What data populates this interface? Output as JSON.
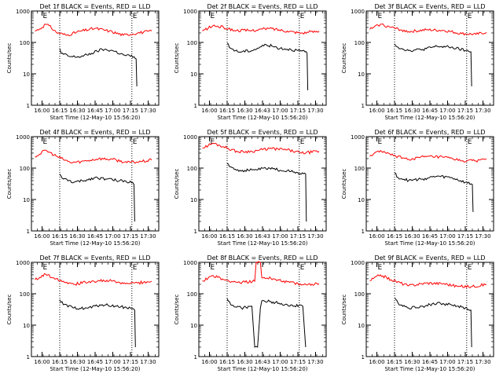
{
  "chart_data": [
    {
      "type": "line",
      "title": "Det 1f BLACK = Events, RED = LLD",
      "ylabel": "Counts/sec",
      "xlabel": "Start Time (12-May-10 15:56:20)",
      "x_ticks": [
        "16:00",
        "16:15",
        "16:30",
        "16:45",
        "17:00",
        "17:15",
        "17:30"
      ],
      "y_ticks": [
        "1",
        "10",
        "100",
        "1000"
      ],
      "ylim": [
        1,
        1000
      ],
      "yscale": "log",
      "markers": [
        "E",
        "E"
      ],
      "series": [
        {
          "color": "#ff0000",
          "values": [
            [
              15.9,
              230
            ],
            [
              16.0,
              300
            ],
            [
              16.05,
              380
            ],
            [
              16.1,
              340
            ],
            [
              16.2,
              210
            ],
            [
              16.35,
              170
            ],
            [
              16.55,
              230
            ],
            [
              16.75,
              280
            ],
            [
              16.95,
              230
            ],
            [
              17.15,
              170
            ],
            [
              17.35,
              200
            ],
            [
              17.55,
              230
            ]
          ]
        },
        {
          "color": "#000000",
          "values": [
            [
              16.25,
              65
            ],
            [
              16.27,
              45
            ],
            [
              16.4,
              35
            ],
            [
              16.55,
              35
            ],
            [
              16.7,
              45
            ],
            [
              16.85,
              60
            ],
            [
              17.0,
              55
            ],
            [
              17.15,
              40
            ],
            [
              17.3,
              35
            ],
            [
              17.33,
              30
            ],
            [
              17.34,
              4
            ]
          ]
        }
      ]
    },
    {
      "type": "line",
      "title": "Det 2f BLACK = Events, RED = LLD",
      "ylabel": "Counts/sec",
      "xlabel": "Start Time (12-May-10 15:56:20)",
      "x_ticks": [
        "16:00",
        "16:15",
        "16:30",
        "16:43",
        "17:00",
        "17:15",
        "17:30"
      ],
      "y_ticks": [
        "1",
        "10",
        "100",
        "1000"
      ],
      "ylim": [
        1,
        1000
      ],
      "yscale": "log",
      "markers": [
        "E",
        "E"
      ],
      "series": [
        {
          "color": "#ff0000",
          "values": [
            [
              15.9,
              230
            ],
            [
              16.05,
              340
            ],
            [
              16.2,
              300
            ],
            [
              16.35,
              240
            ],
            [
              16.6,
              240
            ],
            [
              16.85,
              280
            ],
            [
              17.1,
              230
            ],
            [
              17.3,
              200
            ],
            [
              17.55,
              230
            ]
          ]
        },
        {
          "color": "#000000",
          "values": [
            [
              16.25,
              95
            ],
            [
              16.28,
              70
            ],
            [
              16.4,
              50
            ],
            [
              16.6,
              55
            ],
            [
              16.8,
              85
            ],
            [
              17.0,
              65
            ],
            [
              17.15,
              60
            ],
            [
              17.35,
              50
            ],
            [
              17.38,
              45
            ],
            [
              17.39,
              3
            ]
          ]
        }
      ]
    },
    {
      "type": "line",
      "title": "Det 3f BLACK = Events, RED = LLD",
      "ylabel": "Counts/sec",
      "xlabel": "Start Time (12-May-10 15:56:20)",
      "x_ticks": [
        "16:00",
        "16:15",
        "16:30",
        "16:45",
        "17:00",
        "17:15",
        "17:30"
      ],
      "y_ticks": [
        "1",
        "10",
        "100",
        "1000"
      ],
      "ylim": [
        1,
        1000
      ],
      "yscale": "log",
      "markers": [
        "E",
        "E"
      ],
      "series": [
        {
          "color": "#ff0000",
          "values": [
            [
              15.9,
              260
            ],
            [
              16.05,
              380
            ],
            [
              16.2,
              300
            ],
            [
              16.45,
              220
            ],
            [
              16.7,
              250
            ],
            [
              16.95,
              240
            ],
            [
              17.2,
              190
            ],
            [
              17.4,
              180
            ],
            [
              17.55,
              210
            ]
          ]
        },
        {
          "color": "#000000",
          "values": [
            [
              16.25,
              90
            ],
            [
              16.3,
              70
            ],
            [
              16.45,
              55
            ],
            [
              16.65,
              60
            ],
            [
              16.85,
              75
            ],
            [
              17.05,
              70
            ],
            [
              17.25,
              55
            ],
            [
              17.33,
              50
            ],
            [
              17.34,
              4
            ]
          ]
        }
      ]
    },
    {
      "type": "line",
      "title": "Det 4f BLACK = Events, RED = LLD",
      "ylabel": "Counts/sec",
      "xlabel": "Start Time (12-May-10 15:56:20)",
      "x_ticks": [
        "16:00",
        "16:15",
        "16:30",
        "16:45",
        "17:00",
        "17:15",
        "17:30"
      ],
      "y_ticks": [
        "1",
        "10",
        "100",
        "1000"
      ],
      "ylim": [
        1,
        1000
      ],
      "yscale": "log",
      "markers": [
        "E",
        "E"
      ],
      "series": [
        {
          "color": "#ff0000",
          "values": [
            [
              15.9,
              230
            ],
            [
              16.05,
              370
            ],
            [
              16.2,
              240
            ],
            [
              16.4,
              150
            ],
            [
              16.55,
              160
            ],
            [
              16.8,
              200
            ],
            [
              17.0,
              190
            ],
            [
              17.2,
              150
            ],
            [
              17.4,
              160
            ],
            [
              17.55,
              180
            ]
          ]
        },
        {
          "color": "#000000",
          "values": [
            [
              16.25,
              65
            ],
            [
              16.3,
              45
            ],
            [
              16.45,
              35
            ],
            [
              16.6,
              40
            ],
            [
              16.75,
              50
            ],
            [
              16.9,
              45
            ],
            [
              17.1,
              40
            ],
            [
              17.28,
              35
            ],
            [
              17.3,
              30
            ],
            [
              17.31,
              2
            ]
          ]
        }
      ]
    },
    {
      "type": "line",
      "title": "Det 5f BLACK = Events, RED = LLD",
      "ylabel": "Counts/sec",
      "xlabel": "Start Time (12-May-10 15:56:20)",
      "x_ticks": [
        "16:00",
        "16:15",
        "16:30",
        "16:43",
        "17:00",
        "17:15",
        "17:30"
      ],
      "y_ticks": [
        "1",
        "10",
        "100",
        "1000"
      ],
      "ylim": [
        1,
        1000
      ],
      "yscale": "log",
      "markers": [
        "E",
        "E"
      ],
      "series": [
        {
          "color": "#ff0000",
          "values": [
            [
              15.9,
              430
            ],
            [
              16.05,
              620
            ],
            [
              16.2,
              480
            ],
            [
              16.4,
              330
            ],
            [
              16.6,
              340
            ],
            [
              16.85,
              420
            ],
            [
              17.1,
              380
            ],
            [
              17.3,
              300
            ],
            [
              17.55,
              340
            ]
          ]
        },
        {
          "color": "#000000",
          "values": [
            [
              16.25,
              140
            ],
            [
              16.3,
              110
            ],
            [
              16.45,
              80
            ],
            [
              16.65,
              90
            ],
            [
              16.85,
              100
            ],
            [
              17.0,
              85
            ],
            [
              17.2,
              75
            ],
            [
              17.36,
              65
            ],
            [
              17.37,
              2
            ]
          ]
        }
      ]
    },
    {
      "type": "line",
      "title": "Det 6f BLACK = Events, RED = LLD",
      "ylabel": "Counts/sec",
      "xlabel": "Start Time (12-May-10 15:56:20)",
      "x_ticks": [
        "16:00",
        "16:15",
        "16:30",
        "16:45",
        "17:00",
        "17:15",
        "17:30"
      ],
      "y_ticks": [
        "1",
        "10",
        "100",
        "1000"
      ],
      "ylim": [
        1,
        1000
      ],
      "yscale": "log",
      "markers": [
        "E",
        "E"
      ],
      "series": [
        {
          "color": "#ff0000",
          "values": [
            [
              15.9,
              240
            ],
            [
              16.05,
              360
            ],
            [
              16.2,
              260
            ],
            [
              16.45,
              190
            ],
            [
              16.7,
              230
            ],
            [
              16.95,
              220
            ],
            [
              17.2,
              170
            ],
            [
              17.4,
              170
            ],
            [
              17.55,
              200
            ]
          ]
        },
        {
          "color": "#000000",
          "values": [
            [
              16.25,
              70
            ],
            [
              16.3,
              50
            ],
            [
              16.45,
              40
            ],
            [
              16.65,
              45
            ],
            [
              16.85,
              55
            ],
            [
              17.05,
              50
            ],
            [
              17.25,
              35
            ],
            [
              17.35,
              30
            ],
            [
              17.36,
              4
            ]
          ]
        }
      ]
    },
    {
      "type": "line",
      "title": "Det 7f BLACK = Events, RED = LLD",
      "ylabel": "Counts/sec",
      "xlabel": "Start Time (12-May-10 15:56:20)",
      "x_ticks": [
        "16:00",
        "16:15",
        "16:30",
        "16:45",
        "17:00",
        "17:15",
        "17:30"
      ],
      "y_ticks": [
        "1",
        "10",
        "100",
        "1000"
      ],
      "ylim": [
        1,
        1000
      ],
      "yscale": "log",
      "markers": [
        "E",
        "E"
      ],
      "series": [
        {
          "color": "#ff0000",
          "values": [
            [
              15.9,
              280
            ],
            [
              16.05,
              420
            ],
            [
              16.2,
              300
            ],
            [
              16.45,
              200
            ],
            [
              16.7,
              250
            ],
            [
              16.95,
              260
            ],
            [
              17.15,
              210
            ],
            [
              17.35,
              220
            ],
            [
              17.55,
              250
            ]
          ]
        },
        {
          "color": "#000000",
          "values": [
            [
              16.25,
              65
            ],
            [
              16.3,
              45
            ],
            [
              16.45,
              35
            ],
            [
              16.65,
              35
            ],
            [
              16.85,
              45
            ],
            [
              17.05,
              40
            ],
            [
              17.25,
              35
            ],
            [
              17.31,
              30
            ],
            [
              17.32,
              2
            ]
          ]
        }
      ]
    },
    {
      "type": "line",
      "title": "Det 8f BLACK = Events, RED = LLD",
      "ylabel": "Counts/sec",
      "xlabel": "Start Time (12-May-10 15:56:20)",
      "x_ticks": [
        "16:00",
        "16:15",
        "16:30",
        "16:43",
        "17:00",
        "17:15",
        "17:30"
      ],
      "y_ticks": [
        "1",
        "10",
        "100",
        "1000"
      ],
      "ylim": [
        1,
        1000
      ],
      "yscale": "log",
      "markers": [
        "E",
        "E"
      ],
      "series": [
        {
          "color": "#ff0000",
          "values": [
            [
              15.9,
              260
            ],
            [
              16.05,
              380
            ],
            [
              16.2,
              280
            ],
            [
              16.4,
              230
            ],
            [
              16.64,
              250
            ],
            [
              16.66,
              1000
            ],
            [
              16.72,
              1000
            ],
            [
              16.74,
              330
            ],
            [
              16.9,
              300
            ],
            [
              17.1,
              240
            ],
            [
              17.3,
              190
            ],
            [
              17.55,
              210
            ]
          ]
        },
        {
          "color": "#000000",
          "values": [
            [
              16.25,
              70
            ],
            [
              16.3,
              45
            ],
            [
              16.45,
              35
            ],
            [
              16.6,
              40
            ],
            [
              16.64,
              2
            ],
            [
              16.68,
              2
            ],
            [
              16.72,
              35
            ],
            [
              16.74,
              60
            ],
            [
              16.9,
              55
            ],
            [
              17.1,
              45
            ],
            [
              17.32,
              40
            ],
            [
              17.36,
              2
            ]
          ]
        }
      ]
    },
    {
      "type": "line",
      "title": "Det 9f BLACK = Events, RED = LLD",
      "ylabel": "Counts/sec",
      "xlabel": "Start Time (12-May-10 15:56:20)",
      "x_ticks": [
        "16:00",
        "16:15",
        "16:30",
        "16:45",
        "17:00",
        "17:15",
        "17:30"
      ],
      "y_ticks": [
        "1",
        "10",
        "100",
        "1000"
      ],
      "ylim": [
        1,
        1000
      ],
      "yscale": "log",
      "markers": [
        "E",
        "E"
      ],
      "series": [
        {
          "color": "#ff0000",
          "values": [
            [
              15.9,
              260
            ],
            [
              16.05,
              400
            ],
            [
              16.2,
              280
            ],
            [
              16.45,
              180
            ],
            [
              16.7,
              220
            ],
            [
              16.95,
              210
            ],
            [
              17.15,
              170
            ],
            [
              17.35,
              170
            ],
            [
              17.55,
              200
            ]
          ]
        },
        {
          "color": "#000000",
          "values": [
            [
              16.25,
              75
            ],
            [
              16.3,
              50
            ],
            [
              16.45,
              35
            ],
            [
              16.65,
              40
            ],
            [
              16.85,
              50
            ],
            [
              17.05,
              45
            ],
            [
              17.25,
              35
            ],
            [
              17.33,
              30
            ],
            [
              17.34,
              2
            ]
          ]
        }
      ]
    }
  ]
}
